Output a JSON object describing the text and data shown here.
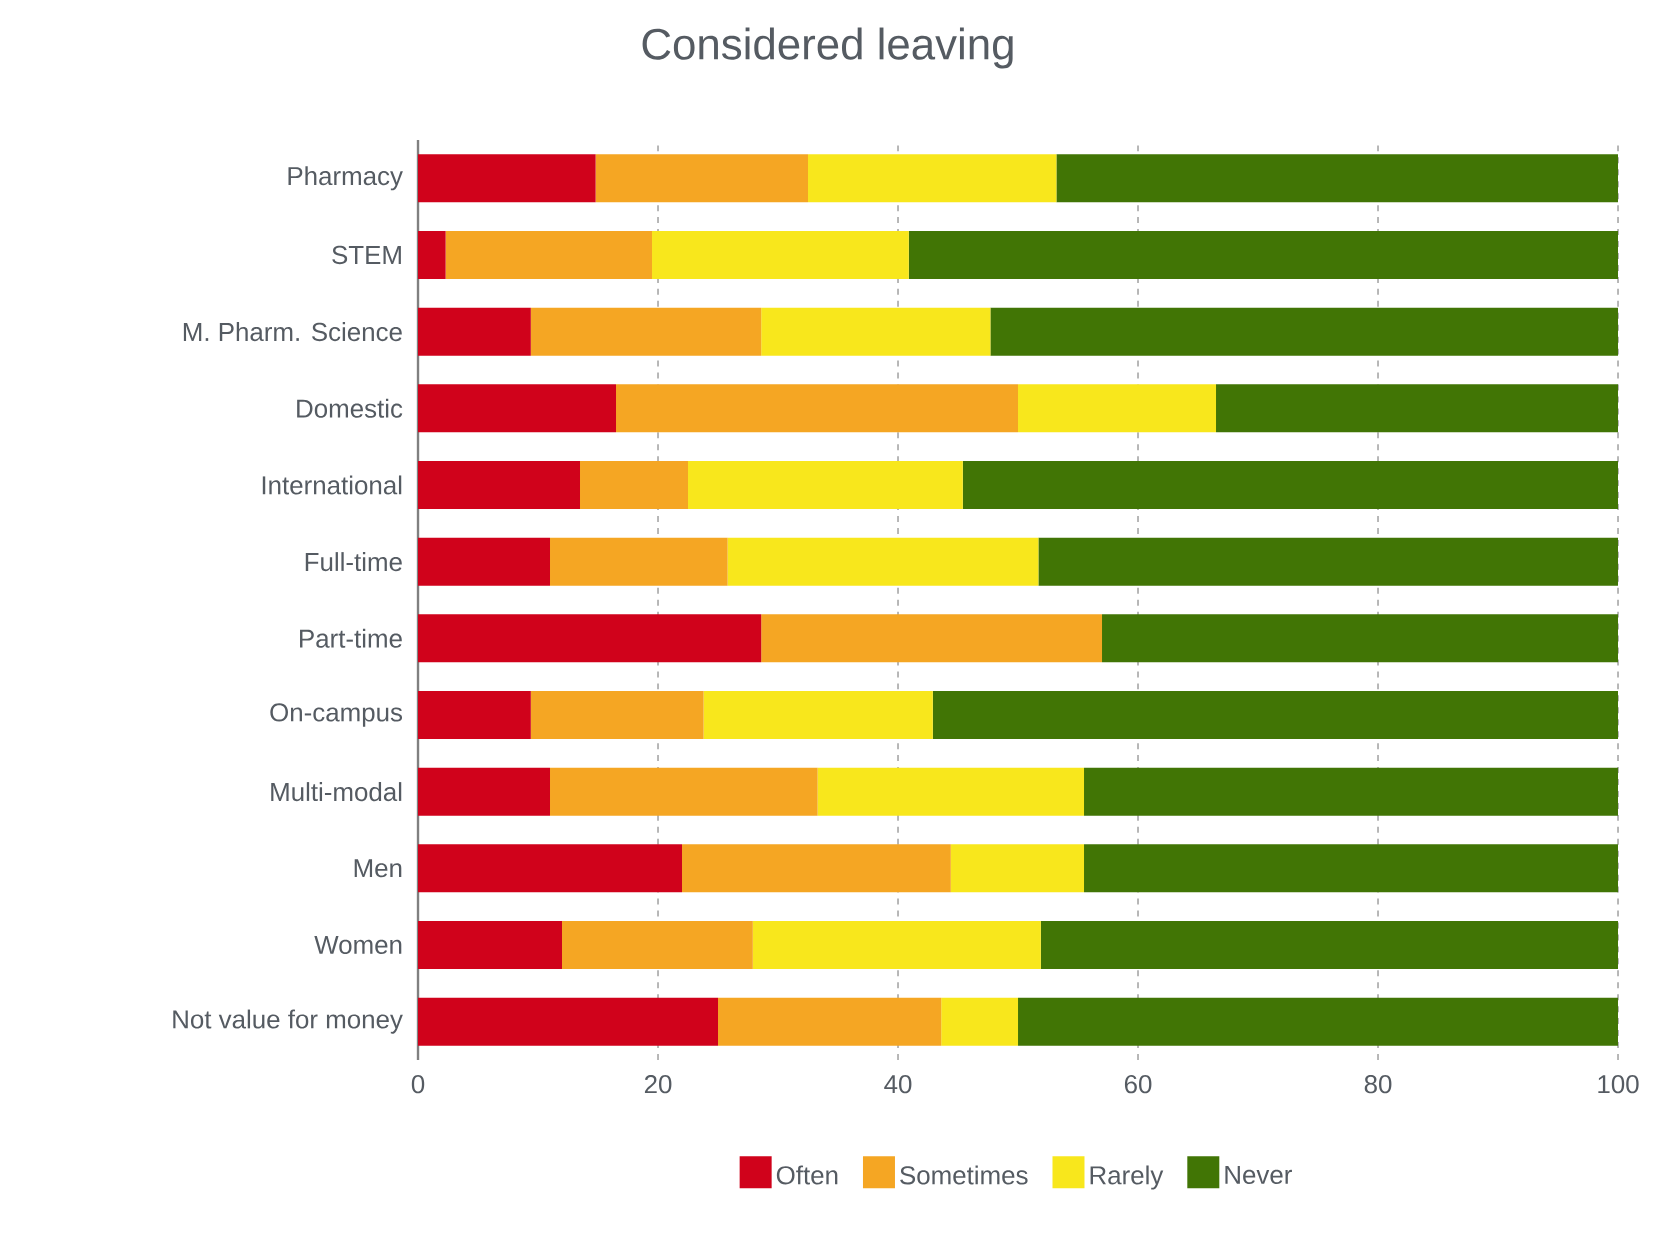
{
  "chart_data": {
    "type": "bar",
    "orientation": "horizontal",
    "stacked": true,
    "title": "Considered leaving",
    "categories": [
      "Pharmacy",
      "STEM",
      "M. Pharm. Science",
      "Domestic",
      "International",
      "Full-time",
      "Part-time",
      "On-campus",
      "Multi-modal",
      "Men",
      "Women",
      "Not value for money"
    ],
    "series": [
      {
        "name": "Often",
        "color": "#d0021b",
        "values": [
          14.8,
          2.3,
          9.4,
          16.5,
          13.5,
          11.0,
          28.6,
          9.4,
          11.0,
          22.0,
          12.0,
          25.0
        ]
      },
      {
        "name": "Sometimes",
        "color": "#f5a623",
        "values": [
          17.7,
          17.2,
          19.2,
          33.5,
          9.0,
          14.8,
          28.4,
          14.4,
          22.3,
          22.4,
          15.9,
          18.6
        ]
      },
      {
        "name": "Rarely",
        "color": "#f8e71c",
        "values": [
          20.7,
          21.4,
          19.1,
          16.5,
          22.9,
          25.9,
          0,
          19.1,
          22.2,
          11.1,
          24.0,
          6.4
        ]
      },
      {
        "name": "Never",
        "color": "#417505",
        "values": [
          46.8,
          59.1,
          52.3,
          33.5,
          54.6,
          48.3,
          43.0,
          57.1,
          44.5,
          44.5,
          48.1,
          50.0
        ]
      }
    ],
    "xlim": [
      0,
      100
    ],
    "xticks": [
      0,
      20,
      40,
      60,
      80,
      100
    ],
    "grid": "x",
    "legend": "bottom"
  }
}
